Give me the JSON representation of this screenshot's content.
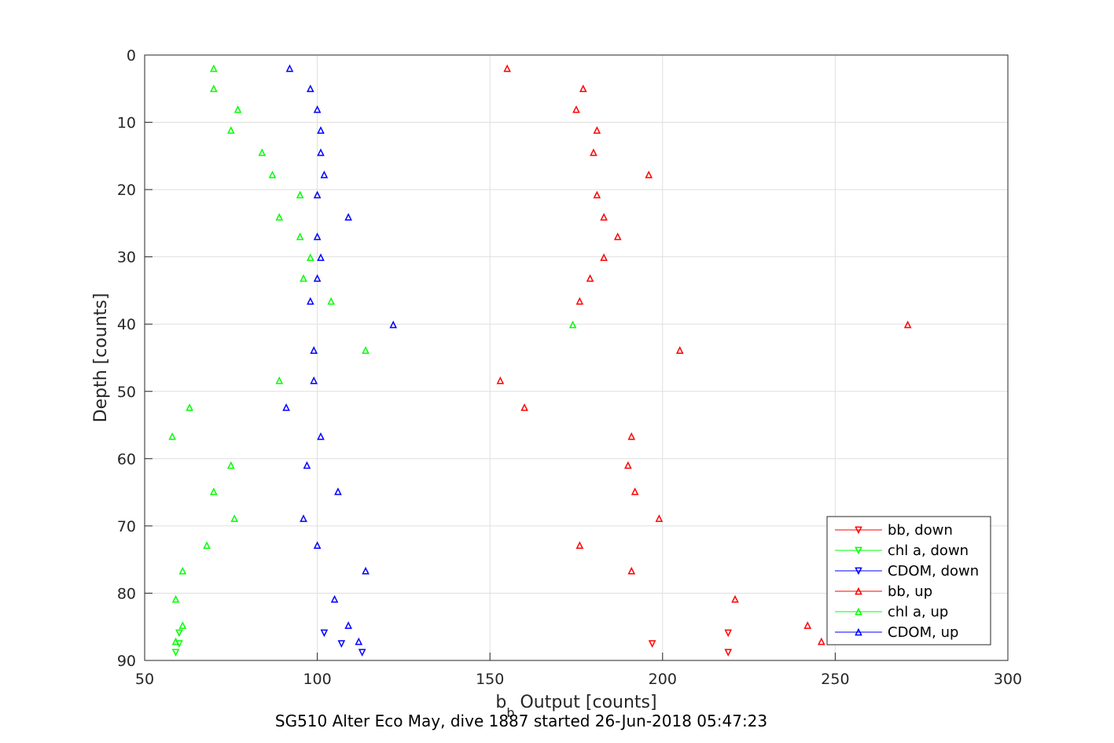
{
  "chart_data": {
    "type": "scatter",
    "title": "",
    "caption": "SG510 Alter Eco May, dive 1887 started 26-Jun-2018 05:47:23",
    "xlabel_main": "b",
    "xlabel_sub": "b",
    "xlabel_rest": " Output [counts]",
    "ylabel": "Depth [counts]",
    "xlim": [
      50,
      300
    ],
    "ylim": [
      0,
      90
    ],
    "y_reversed": true,
    "grid": true,
    "legend_position": "bottom-right",
    "x_ticks": [
      "50",
      "100",
      "150",
      "200",
      "250",
      "300"
    ],
    "y_ticks": [
      "0",
      "10",
      "20",
      "30",
      "40",
      "50",
      "60",
      "70",
      "80",
      "90"
    ],
    "series": [
      {
        "name": "bb, down",
        "color": "#ff0000",
        "marker": "triangle-down",
        "points": [
          [
            219,
            88.8
          ],
          [
            197,
            87.5
          ],
          [
            219,
            85.9
          ]
        ]
      },
      {
        "name": "chl a, down",
        "color": "#00ff00",
        "marker": "triangle-down",
        "points": [
          [
            59,
            88.8
          ],
          [
            60,
            87.5
          ],
          [
            60,
            85.9
          ]
        ]
      },
      {
        "name": "CDOM, down",
        "color": "#0000ff",
        "marker": "triangle-down",
        "points": [
          [
            113,
            88.8
          ],
          [
            107,
            87.5
          ],
          [
            102,
            85.9
          ]
        ]
      },
      {
        "name": "bb, up",
        "color": "#ff0000",
        "marker": "triangle-up",
        "points": [
          [
            155,
            2.0
          ],
          [
            177,
            5.0
          ],
          [
            175,
            8.1
          ],
          [
            181,
            11.2
          ],
          [
            180,
            14.5
          ],
          [
            196,
            17.8
          ],
          [
            181,
            20.8
          ],
          [
            183,
            24.1
          ],
          [
            187,
            27.0
          ],
          [
            183,
            30.1
          ],
          [
            179,
            33.2
          ],
          [
            176,
            36.6
          ],
          [
            271,
            40.1
          ],
          [
            205,
            43.9
          ],
          [
            153,
            48.4
          ],
          [
            160,
            52.4
          ],
          [
            191,
            56.7
          ],
          [
            190,
            61.0
          ],
          [
            192,
            64.9
          ],
          [
            199,
            68.9
          ],
          [
            176,
            72.9
          ],
          [
            191,
            76.7
          ],
          [
            221,
            80.9
          ],
          [
            242,
            84.8
          ],
          [
            246,
            87.2
          ]
        ]
      },
      {
        "name": "chl a, up",
        "color": "#00ff00",
        "marker": "triangle-up",
        "points": [
          [
            70,
            2.0
          ],
          [
            70,
            5.0
          ],
          [
            77,
            8.1
          ],
          [
            75,
            11.2
          ],
          [
            84,
            14.5
          ],
          [
            87,
            17.8
          ],
          [
            95,
            20.8
          ],
          [
            89,
            24.1
          ],
          [
            95,
            27.0
          ],
          [
            98,
            30.1
          ],
          [
            96,
            33.2
          ],
          [
            104,
            36.6
          ],
          [
            174,
            40.1
          ],
          [
            114,
            43.9
          ],
          [
            89,
            48.4
          ],
          [
            63,
            52.4
          ],
          [
            58,
            56.7
          ],
          [
            75,
            61.0
          ],
          [
            70,
            64.9
          ],
          [
            76,
            68.9
          ],
          [
            68,
            72.9
          ],
          [
            61,
            76.7
          ],
          [
            59,
            80.9
          ],
          [
            61,
            84.8
          ],
          [
            59,
            87.2
          ]
        ]
      },
      {
        "name": "CDOM, up",
        "color": "#0000ff",
        "marker": "triangle-up",
        "points": [
          [
            92,
            2.0
          ],
          [
            98,
            5.0
          ],
          [
            100,
            8.1
          ],
          [
            101,
            11.2
          ],
          [
            101,
            14.5
          ],
          [
            102,
            17.8
          ],
          [
            100,
            20.8
          ],
          [
            109,
            24.1
          ],
          [
            100,
            27.0
          ],
          [
            101,
            30.1
          ],
          [
            100,
            33.2
          ],
          [
            98,
            36.6
          ],
          [
            122,
            40.1
          ],
          [
            99,
            43.9
          ],
          [
            99,
            48.4
          ],
          [
            91,
            52.4
          ],
          [
            101,
            56.7
          ],
          [
            97,
            61.0
          ],
          [
            106,
            64.9
          ],
          [
            96,
            68.9
          ],
          [
            100,
            72.9
          ],
          [
            114,
            76.7
          ],
          [
            105,
            80.9
          ],
          [
            109,
            84.8
          ],
          [
            112,
            87.2
          ]
        ]
      }
    ]
  }
}
